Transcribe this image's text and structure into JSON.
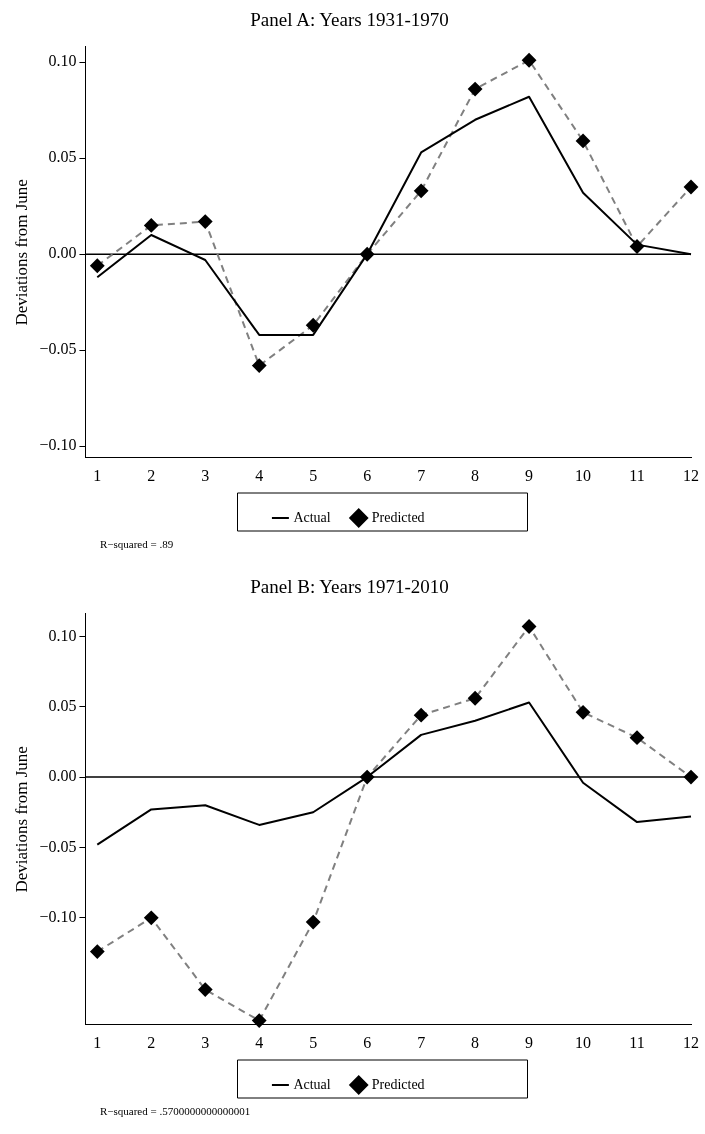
{
  "chart_data": [
    {
      "type": "line",
      "title": "Panel A: Years 1931-1970",
      "ylabel": "Deviations from June",
      "x": [
        1,
        2,
        3,
        4,
        5,
        6,
        7,
        8,
        9,
        10,
        11,
        12
      ],
      "xlim": [
        0.78,
        12
      ],
      "xticks": [
        1,
        2,
        3,
        4,
        5,
        6,
        7,
        8,
        9,
        10,
        11,
        12
      ],
      "ylim": [
        -0.106,
        0.108
      ],
      "yticks": [
        {
          "value": -0.1,
          "label": "−0.10"
        },
        {
          "value": -0.05,
          "label": "−0.05"
        },
        {
          "value": 0,
          "label": "0.00"
        },
        {
          "value": 0.05,
          "label": "0.05"
        },
        {
          "value": 0.1,
          "label": "0.10"
        }
      ],
      "grid": false,
      "legend": "bottom",
      "ref_lines": [
        {
          "axis": "y",
          "value": 0,
          "color": "#000000"
        }
      ],
      "annotations": [
        "R−squared = .89"
      ],
      "series": [
        {
          "name": "Actual",
          "color": "#000000",
          "marker": "none",
          "line_style": "solid",
          "values": [
            -0.012,
            0.01,
            -0.003,
            -0.042,
            -0.042,
            0,
            0.053,
            0.07,
            0.082,
            0.032,
            0.005,
            0.0
          ]
        },
        {
          "name": "Predicted",
          "color": "#808080",
          "marker": "diamond",
          "line_style": "dashed",
          "values": [
            -0.006,
            0.015,
            0.017,
            -0.058,
            -0.037,
            0,
            0.033,
            0.086,
            0.101,
            0.059,
            0.004,
            0.035
          ]
        }
      ]
    },
    {
      "type": "line",
      "title": "Panel B: Years 1971-2010",
      "ylabel": "Deviations from June",
      "x": [
        1,
        2,
        3,
        4,
        5,
        6,
        7,
        8,
        9,
        10,
        11,
        12
      ],
      "xlim": [
        0.78,
        12
      ],
      "xticks": [
        1,
        2,
        3,
        4,
        5,
        6,
        7,
        8,
        9,
        10,
        11,
        12
      ],
      "ylim": [
        -0.176,
        0.116
      ],
      "yticks": [
        {
          "value": -0.1,
          "label": "−0.10"
        },
        {
          "value": -0.05,
          "label": "−0.05"
        },
        {
          "value": 0,
          "label": "0.00"
        },
        {
          "value": 0.05,
          "label": "0.05"
        },
        {
          "value": 0.1,
          "label": "0.10"
        }
      ],
      "grid": false,
      "legend": "bottom",
      "ref_lines": [
        {
          "axis": "y",
          "value": 0,
          "color": "#000000"
        }
      ],
      "annotations": [
        "R−squared = .5700000000000001"
      ],
      "series": [
        {
          "name": "Actual",
          "color": "#000000",
          "marker": "none",
          "line_style": "solid",
          "values": [
            -0.048,
            -0.023,
            -0.02,
            -0.034,
            -0.025,
            0,
            0.03,
            0.04,
            0.053,
            -0.004,
            -0.032,
            -0.028
          ]
        },
        {
          "name": "Predicted",
          "color": "#808080",
          "marker": "diamond",
          "line_style": "dashed",
          "values": [
            -0.124,
            -0.1,
            -0.151,
            -0.173,
            -0.103,
            0,
            0.044,
            0.056,
            0.107,
            0.046,
            0.028,
            0
          ]
        }
      ]
    }
  ]
}
